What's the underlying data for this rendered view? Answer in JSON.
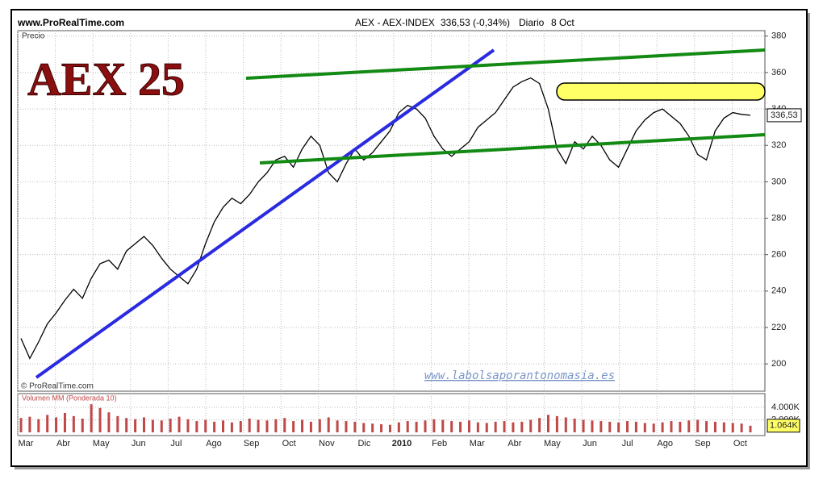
{
  "header": {
    "site": "www.ProRealTime.com",
    "instrument": "AEX - AEX-INDEX",
    "quote": "336,53 (-0,34%)",
    "period": "Diario",
    "date": "8 Oct"
  },
  "annotations": {
    "big_title": "AEX 25",
    "price_label": "Precio",
    "copyright": "© ProRealTime.com",
    "website": "www.labolsaporantonomasia.es",
    "volume_label": "Volumen MM (Ponderada 10)"
  },
  "x_axis_labels": [
    "Mar",
    "Abr",
    "May",
    "Jun",
    "Jul",
    "Ago",
    "Sep",
    "Oct",
    "Nov",
    "Dic",
    "2010",
    "Feb",
    "Mar",
    "Abr",
    "May",
    "Jun",
    "Jul",
    "Ago",
    "Sep",
    "Oct"
  ],
  "chart_data": [
    {
      "type": "line",
      "color": "#000000",
      "values": [
        214,
        203,
        212,
        222,
        228,
        235,
        241,
        236,
        247,
        255,
        257,
        252,
        262,
        266,
        270,
        265,
        258,
        252,
        248,
        244,
        252,
        266,
        278,
        286,
        291,
        288,
        293,
        300,
        305,
        312,
        314,
        308,
        318,
        325,
        320,
        305,
        300,
        310,
        318,
        312,
        316,
        322,
        328,
        338,
        342,
        340,
        335,
        325,
        318,
        314,
        318,
        322,
        330,
        334,
        338,
        345,
        352,
        355,
        357,
        354,
        340,
        318,
        310,
        322,
        318,
        325,
        320,
        312,
        308,
        318,
        328,
        334,
        338,
        340,
        336,
        332,
        325,
        315,
        312,
        328,
        335,
        338,
        337,
        336.53
      ],
      "last_value_label": "336,53",
      "ylim": [
        185,
        383
      ],
      "yticks": [
        200,
        220,
        240,
        260,
        280,
        300,
        320,
        340,
        360,
        380
      ],
      "grid": true
    },
    {
      "type": "bar",
      "color": "#c04848",
      "values": [
        2300,
        2500,
        2100,
        2800,
        2400,
        3100,
        2600,
        2200,
        4500,
        3900,
        3200,
        2600,
        2300,
        2100,
        2400,
        2000,
        1900,
        2200,
        2500,
        2100,
        1800,
        2000,
        1700,
        1900,
        1600,
        1800,
        2200,
        2000,
        1900,
        2100,
        2300,
        1800,
        2000,
        1700,
        2100,
        2400,
        1900,
        1800,
        1700,
        1500,
        1400,
        1300,
        1200,
        1600,
        1800,
        1700,
        1900,
        2100,
        2000,
        1800,
        1700,
        1900,
        1600,
        1500,
        1700,
        1800,
        1600,
        1700,
        2000,
        2300,
        2800,
        2600,
        2400,
        2200,
        2000,
        1900,
        1800,
        1700,
        1600,
        1800,
        1700,
        1500,
        1400,
        1600,
        1800,
        1700,
        1900,
        2000,
        1800,
        1700,
        1600,
        1500,
        1400,
        1064
      ],
      "last_value_label": "1.064K",
      "ylim": [
        0,
        6200
      ],
      "yticks": [
        {
          "value": 2000,
          "label": "2.000K"
        },
        {
          "value": 4000,
          "label": "4.000K"
        }
      ]
    }
  ]
}
